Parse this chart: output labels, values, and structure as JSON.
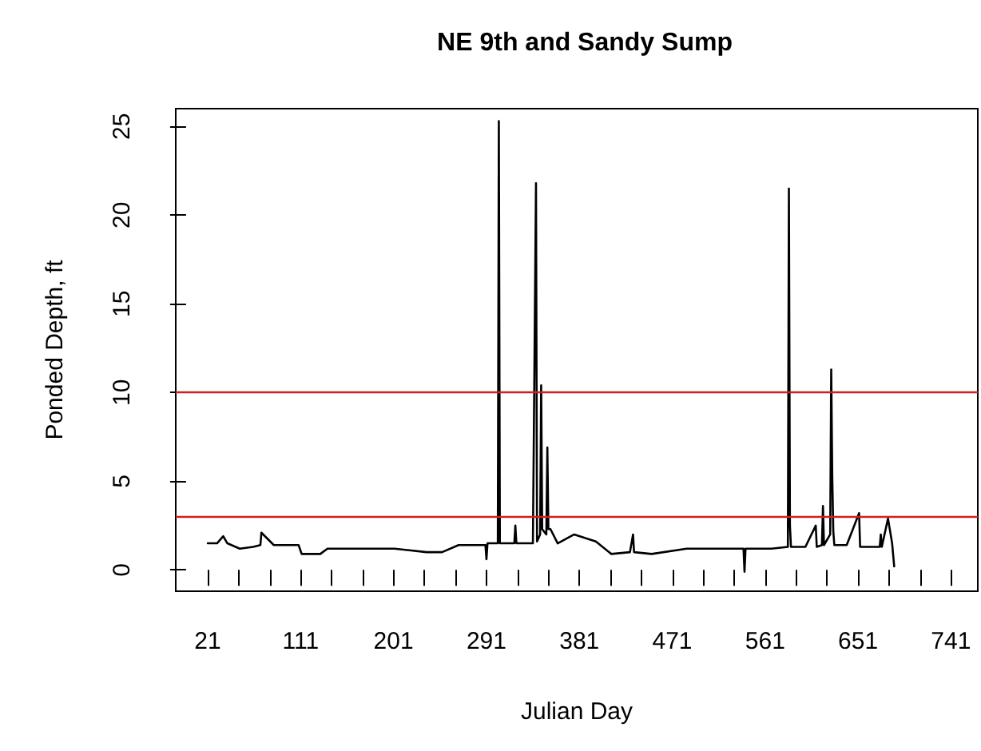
{
  "chart_data": {
    "type": "line",
    "title": "NE 9th and Sandy Sump",
    "xlabel": "Julian Day",
    "ylabel": "Ponded Depth, ft",
    "series": [
      {
        "color": "#000000",
        "x": [
          21,
          30,
          36,
          40,
          52,
          65,
          72,
          73,
          85,
          109,
          112,
          130,
          137,
          170,
          202,
          233,
          248,
          264,
          280,
          290,
          291,
          292,
          302,
          303,
          304,
          318,
          319,
          320,
          336,
          339,
          340,
          343,
          344,
          345,
          349,
          350,
          351,
          353,
          360,
          376,
          397,
          412,
          430,
          433,
          434,
          451,
          485,
          520,
          540,
          541,
          542,
          567,
          583,
          584,
          585,
          586,
          600,
          610,
          611,
          616,
          617,
          618,
          624,
          625,
          626,
          627,
          628,
          640,
          652,
          653,
          672,
          673,
          674,
          680,
          684,
          686
        ],
        "values": [
          1.5,
          1.5,
          1.9,
          1.5,
          1.2,
          1.3,
          1.4,
          2.1,
          1.4,
          1.4,
          0.9,
          0.9,
          1.2,
          1.2,
          1.2,
          1.0,
          1.0,
          1.4,
          1.4,
          1.4,
          0.6,
          1.5,
          1.5,
          25.3,
          1.5,
          1.5,
          2.5,
          1.5,
          1.5,
          21.8,
          1.6,
          2.0,
          10.4,
          2.3,
          2.0,
          6.9,
          2.3,
          2.3,
          1.5,
          2.0,
          1.6,
          0.9,
          1.0,
          2.0,
          1.0,
          0.9,
          1.2,
          1.2,
          1.2,
          -0.1,
          1.2,
          1.2,
          1.3,
          21.5,
          2.5,
          1.3,
          1.3,
          2.5,
          1.3,
          1.4,
          3.6,
          1.4,
          2.0,
          11.3,
          5.3,
          2.2,
          1.4,
          1.4,
          3.2,
          1.3,
          1.3,
          2.0,
          1.3,
          2.9,
          1.5,
          0.2
        ]
      }
    ],
    "xlim": [
      -10,
      767
    ],
    "ylim": [
      -1.2,
      26
    ],
    "xticks": [
      21,
      {
        "value": 51,
        "label": null
      },
      {
        "value": 81,
        "label": null
      },
      111,
      {
        "value": 141,
        "label": null
      },
      {
        "value": 171,
        "label": null
      },
      201,
      {
        "value": 231,
        "label": null
      },
      {
        "value": 261,
        "label": null
      },
      291,
      {
        "value": 321,
        "label": null
      },
      {
        "value": 351,
        "label": null
      },
      381,
      {
        "value": 411,
        "label": null
      },
      {
        "value": 441,
        "label": null
      },
      471,
      {
        "value": 501,
        "label": null
      },
      {
        "value": 531,
        "label": null
      },
      561,
      {
        "value": 591,
        "label": null
      },
      {
        "value": 621,
        "label": null
      },
      651,
      {
        "value": 681,
        "label": null
      },
      {
        "value": 711,
        "label": null
      },
      741
    ],
    "yticks": [
      0,
      5,
      10,
      15,
      20,
      25
    ],
    "ref_lines": [
      {
        "axis": "y",
        "value": 3,
        "color": "#cc2222"
      },
      {
        "axis": "y",
        "value": 10,
        "color": "#cc2222"
      }
    ],
    "grid": false,
    "marker": "none",
    "line_style": "solid"
  }
}
